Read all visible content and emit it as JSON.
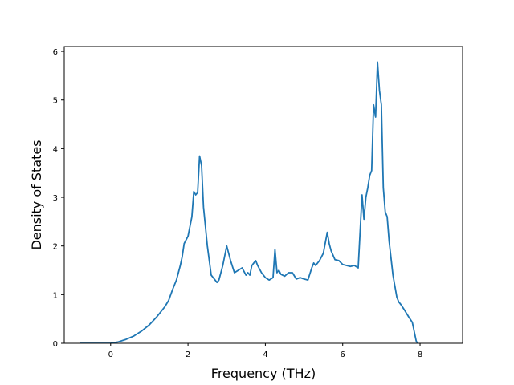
{
  "chart_data": {
    "type": "line",
    "title": "",
    "xlabel": "Frequency (THz)",
    "ylabel": "Density of States",
    "xlim": [
      -1.2,
      9.1
    ],
    "ylim": [
      0,
      6.1
    ],
    "xticks": [
      0,
      2,
      4,
      6,
      8
    ],
    "yticks": [
      0,
      1,
      2,
      3,
      4,
      5,
      6
    ],
    "xtick_labels": [
      "0",
      "2",
      "4",
      "6",
      "8"
    ],
    "ytick_labels": [
      "0",
      "1",
      "2",
      "3",
      "4",
      "5",
      "6"
    ],
    "grid": false,
    "legend": "none",
    "series": [
      {
        "color": "#1f77b4",
        "x": [
          -0.8,
          -0.4,
          0.0,
          0.2,
          0.4,
          0.6,
          0.8,
          1.0,
          1.2,
          1.4,
          1.5,
          1.6,
          1.7,
          1.8,
          1.85,
          1.9,
          2.0,
          2.1,
          2.15,
          2.2,
          2.25,
          2.3,
          2.35,
          2.4,
          2.5,
          2.6,
          2.7,
          2.75,
          2.8,
          2.9,
          3.0,
          3.1,
          3.2,
          3.3,
          3.4,
          3.5,
          3.55,
          3.6,
          3.65,
          3.7,
          3.75,
          3.8,
          3.9,
          4.0,
          4.1,
          4.2,
          4.25,
          4.3,
          4.35,
          4.4,
          4.5,
          4.6,
          4.7,
          4.8,
          4.9,
          5.0,
          5.1,
          5.2,
          5.25,
          5.3,
          5.4,
          5.5,
          5.6,
          5.65,
          5.7,
          5.8,
          5.9,
          6.0,
          6.1,
          6.2,
          6.3,
          6.4,
          6.5,
          6.55,
          6.6,
          6.65,
          6.7,
          6.75,
          6.8,
          6.85,
          6.9,
          6.95,
          7.0,
          7.05,
          7.1,
          7.15,
          7.2,
          7.3,
          7.4,
          7.45,
          7.5,
          7.6,
          7.7,
          7.8,
          7.9,
          8.0,
          8.3,
          8.6
        ],
        "values": [
          0.0,
          0.0,
          0.0,
          0.03,
          0.08,
          0.15,
          0.25,
          0.38,
          0.55,
          0.75,
          0.88,
          1.1,
          1.3,
          1.6,
          1.78,
          2.05,
          2.2,
          2.6,
          3.12,
          3.05,
          3.1,
          3.85,
          3.65,
          2.8,
          2.0,
          1.4,
          1.3,
          1.25,
          1.3,
          1.6,
          2.0,
          1.7,
          1.45,
          1.5,
          1.55,
          1.4,
          1.45,
          1.4,
          1.6,
          1.65,
          1.7,
          1.6,
          1.45,
          1.35,
          1.3,
          1.35,
          1.93,
          1.45,
          1.5,
          1.42,
          1.38,
          1.45,
          1.45,
          1.32,
          1.35,
          1.32,
          1.3,
          1.55,
          1.65,
          1.6,
          1.7,
          1.85,
          2.28,
          2.05,
          1.9,
          1.72,
          1.7,
          1.62,
          1.6,
          1.58,
          1.6,
          1.55,
          3.05,
          2.55,
          3.0,
          3.2,
          3.45,
          3.55,
          4.9,
          4.65,
          5.78,
          5.2,
          4.9,
          3.2,
          2.7,
          2.6,
          2.1,
          1.4,
          0.95,
          0.85,
          0.8,
          0.68,
          0.55,
          0.43,
          0.05,
          -0.1,
          -0.1,
          -0.1
        ]
      }
    ]
  }
}
